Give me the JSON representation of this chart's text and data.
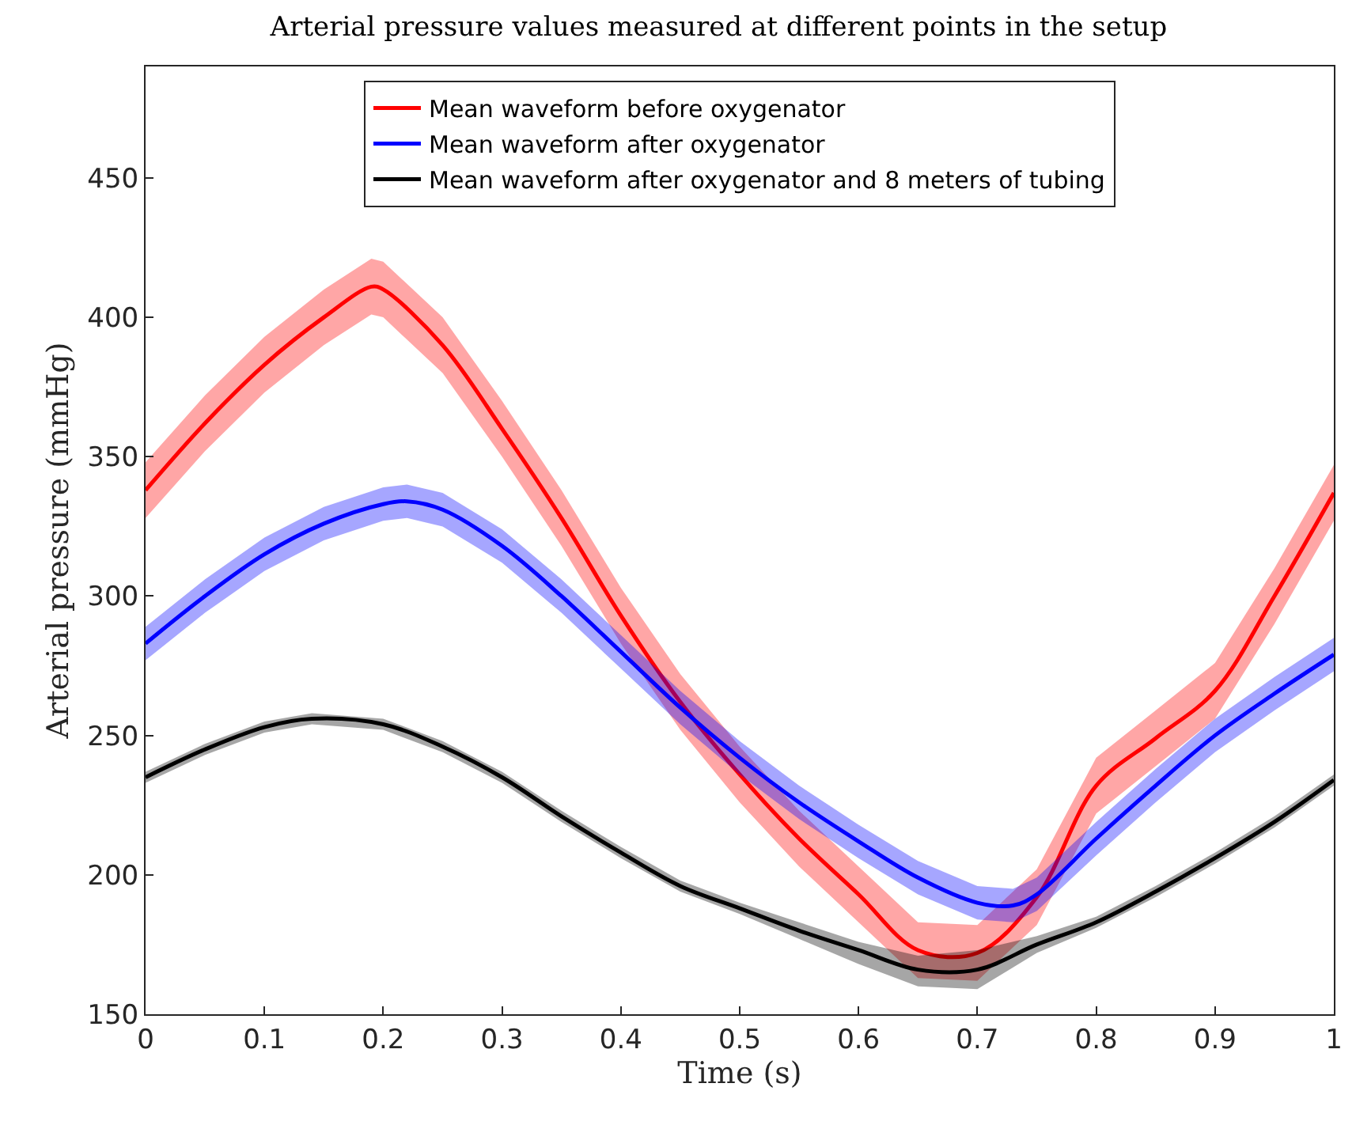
{
  "chart_data": {
    "type": "line",
    "title": "Arterial pressure values measured at different points in the setup",
    "xlabel": "Time (s)",
    "ylabel": "Arterial pressure (mmHg)",
    "xlim": [
      0,
      1
    ],
    "xticks": [
      0,
      0.1,
      0.2,
      0.3,
      0.4,
      0.5,
      0.6,
      0.7,
      0.8,
      0.9,
      1
    ],
    "ylim": [
      150,
      490
    ],
    "yticks": [
      150,
      200,
      250,
      300,
      350,
      400,
      450
    ],
    "grid": false,
    "legend": "top",
    "series": [
      {
        "name": "Mean waveform before oxygenator",
        "color": "#ff0000",
        "x": [
          0,
          0.05,
          0.1,
          0.15,
          0.19,
          0.2,
          0.25,
          0.3,
          0.35,
          0.4,
          0.45,
          0.5,
          0.55,
          0.6,
          0.65,
          0.7,
          0.75,
          0.8,
          0.85,
          0.9,
          0.95,
          1
        ],
        "values": [
          338,
          362,
          383,
          400,
          411,
          410,
          390,
          360,
          328,
          293,
          262,
          236,
          213,
          193,
          173,
          172,
          192,
          232,
          249,
          266,
          300,
          337
        ],
        "lower": [
          328,
          352,
          373,
          390,
          401,
          400,
          380,
          350,
          318,
          283,
          252,
          226,
          203,
          183,
          163,
          162,
          182,
          222,
          239,
          256,
          290,
          327
        ],
        "upper": [
          348,
          372,
          393,
          410,
          421,
          420,
          400,
          370,
          338,
          303,
          272,
          246,
          223,
          203,
          183,
          182,
          202,
          242,
          259,
          276,
          310,
          347
        ]
      },
      {
        "name": "Mean waveform after oxygenator",
        "color": "#0000ff",
        "x": [
          0,
          0.05,
          0.1,
          0.15,
          0.2,
          0.22,
          0.25,
          0.3,
          0.35,
          0.4,
          0.45,
          0.5,
          0.55,
          0.6,
          0.65,
          0.7,
          0.73,
          0.75,
          0.8,
          0.85,
          0.9,
          0.95,
          1
        ],
        "values": [
          283,
          300,
          315,
          326,
          333,
          334,
          331,
          318,
          300,
          280,
          260,
          242,
          226,
          212,
          199,
          190,
          189,
          193,
          213,
          232,
          250,
          265,
          279
        ],
        "lower": [
          277,
          294,
          309,
          320,
          327,
          328,
          325,
          312,
          294,
          274,
          254,
          236,
          220,
          206,
          193,
          184,
          183,
          187,
          207,
          226,
          244,
          259,
          273
        ],
        "upper": [
          289,
          306,
          321,
          332,
          339,
          340,
          337,
          324,
          306,
          286,
          266,
          248,
          232,
          218,
          205,
          196,
          195,
          199,
          219,
          238,
          256,
          271,
          285
        ]
      },
      {
        "name": "Mean waveform after oxygenator and 8 meters of tubing",
        "color": "#000000",
        "x": [
          0,
          0.05,
          0.1,
          0.14,
          0.2,
          0.25,
          0.3,
          0.35,
          0.4,
          0.45,
          0.5,
          0.55,
          0.6,
          0.65,
          0.7,
          0.75,
          0.8,
          0.85,
          0.9,
          0.95,
          1
        ],
        "values": [
          235,
          245,
          253,
          256,
          254,
          246,
          235,
          221,
          208,
          196,
          188,
          180,
          173,
          166,
          166,
          175,
          183,
          194,
          206,
          219,
          234
        ],
        "lower": [
          233,
          243,
          251,
          254,
          252,
          244,
          233,
          219,
          206,
          194,
          186,
          177,
          168,
          160,
          159,
          172,
          181,
          192,
          204,
          217,
          232
        ],
        "upper": [
          237,
          247,
          255,
          258,
          256,
          248,
          237,
          223,
          210,
          198,
          190,
          183,
          176,
          171,
          173,
          178,
          185,
          196,
          208,
          221,
          236
        ]
      }
    ]
  }
}
